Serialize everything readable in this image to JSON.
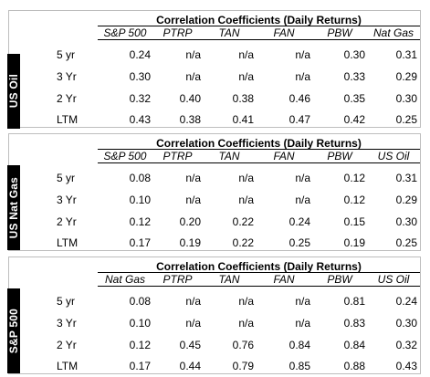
{
  "tables": [
    {
      "sidebar": "US Oil",
      "title": "Correlation Coefficients (Daily Returns)",
      "columns": [
        "S&P 500",
        "PTRP",
        "TAN",
        "FAN",
        "PBW",
        "Nat Gas"
      ],
      "rows": [
        {
          "label": "5 yr",
          "values": [
            "0.24",
            "n/a",
            "n/a",
            "n/a",
            "0.30",
            "0.31"
          ]
        },
        {
          "label": "3 Yr",
          "values": [
            "0.30",
            "n/a",
            "n/a",
            "n/a",
            "0.33",
            "0.29"
          ]
        },
        {
          "label": "2 Yr",
          "values": [
            "0.32",
            "0.40",
            "0.38",
            "0.46",
            "0.35",
            "0.30"
          ]
        },
        {
          "label": "LTM",
          "values": [
            "0.43",
            "0.38",
            "0.41",
            "0.47",
            "0.42",
            "0.25"
          ]
        }
      ]
    },
    {
      "sidebar": "US Nat Gas",
      "title": "Correlation Coefficients (Daily Returns)",
      "columns": [
        "S&P 500",
        "PTRP",
        "TAN",
        "FAN",
        "PBW",
        "US Oil"
      ],
      "rows": [
        {
          "label": "5 yr",
          "values": [
            "0.08",
            "n/a",
            "n/a",
            "n/a",
            "0.12",
            "0.31"
          ]
        },
        {
          "label": "3 Yr",
          "values": [
            "0.10",
            "n/a",
            "n/a",
            "n/a",
            "0.12",
            "0.29"
          ]
        },
        {
          "label": "2 Yr",
          "values": [
            "0.12",
            "0.20",
            "0.22",
            "0.24",
            "0.15",
            "0.30"
          ]
        },
        {
          "label": "LTM",
          "values": [
            "0.17",
            "0.19",
            "0.22",
            "0.25",
            "0.19",
            "0.25"
          ]
        }
      ]
    },
    {
      "sidebar": "S&P 500",
      "title": "Correlation Coefficients (Daily Returns)",
      "columns": [
        "Nat Gas",
        "PTRP",
        "TAN",
        "FAN",
        "PBW",
        "US Oil"
      ],
      "rows": [
        {
          "label": "5 yr",
          "values": [
            "0.08",
            "n/a",
            "n/a",
            "n/a",
            "0.81",
            "0.24"
          ]
        },
        {
          "label": "3 Yr",
          "values": [
            "0.10",
            "n/a",
            "n/a",
            "n/a",
            "0.83",
            "0.30"
          ]
        },
        {
          "label": "2 Yr",
          "values": [
            "0.12",
            "0.45",
            "0.76",
            "0.84",
            "0.84",
            "0.32"
          ]
        },
        {
          "label": "LTM",
          "values": [
            "0.17",
            "0.44",
            "0.79",
            "0.85",
            "0.88",
            "0.43"
          ]
        }
      ]
    }
  ]
}
